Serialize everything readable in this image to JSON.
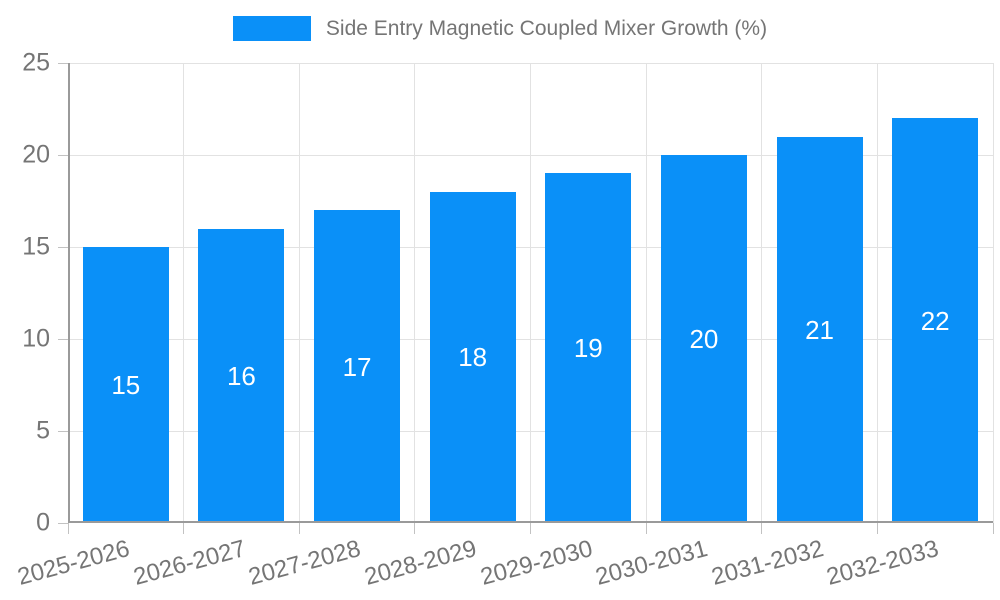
{
  "chart_data": {
    "type": "bar",
    "legend_label": "Side Entry Magnetic Coupled Mixer Growth (%)",
    "categories": [
      "2025-2026",
      "2026-2027",
      "2027-2028",
      "2028-2029",
      "2029-2030",
      "2030-2031",
      "2031-2032",
      "2032-2033"
    ],
    "values": [
      15,
      16,
      17,
      18,
      19,
      20,
      21,
      22
    ],
    "bar_value_labels": [
      "15",
      "16",
      "17",
      "18",
      "19",
      "20",
      "21",
      "22"
    ],
    "yticks": [
      0,
      5,
      10,
      15,
      20,
      25
    ],
    "ylim": [
      0,
      25
    ],
    "xlabel": "",
    "ylabel": "",
    "grid": true,
    "legend_position": "top-center",
    "bar_label_position": "inside-center",
    "colors": {
      "bar": "#0a90f8",
      "bar_label": "#ffffff",
      "grid_line": "#e2e2e2",
      "axis_line": "#9a9a9a",
      "tick_mark": "#c2c2c2",
      "tick_label": "#757575",
      "legend_text": "#757575",
      "background": "#ffffff"
    }
  }
}
